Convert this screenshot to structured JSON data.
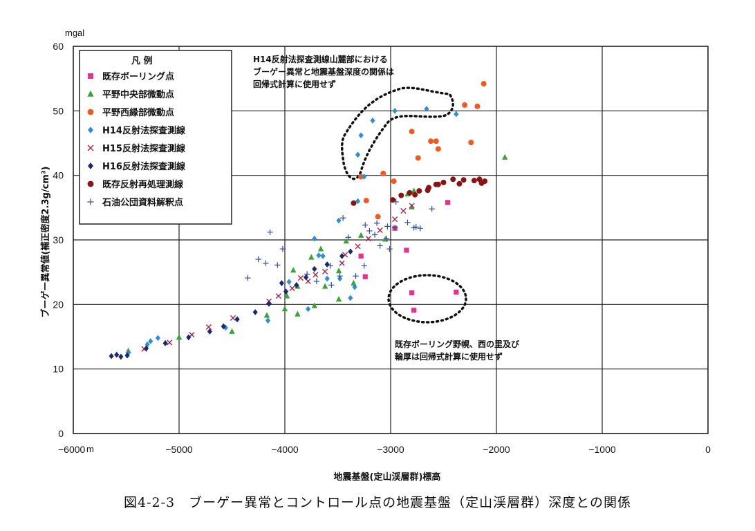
{
  "caption": "図4-2-3　ブーゲー異常とコントロール点の地震基盤（定山渓層群）深度との関係",
  "chart_data": {
    "type": "scatter",
    "xlabel": "地震基盤(定山渓層群)標高",
    "ylabel": "ブーゲー異常値(補正密度2.3g/cm³)",
    "x_unit": "m",
    "y_unit": "mgal",
    "xlim": [
      -6000,
      0
    ],
    "ylim": [
      0,
      60
    ],
    "x_ticks": [
      -6000,
      -5000,
      -4000,
      -3000,
      -2000,
      -1000,
      0
    ],
    "y_ticks": [
      0,
      10,
      20,
      30,
      40,
      50,
      60
    ],
    "x_tick_labels": [
      "−6000",
      "−5000",
      "−4000",
      "−3000",
      "−2000",
      "−1000",
      "0"
    ],
    "y_tick_labels": [
      "0",
      "10",
      "20",
      "30",
      "40",
      "50",
      "60"
    ],
    "grid": true,
    "legend_title": "凡 例",
    "legend_position": "top-left",
    "series": [
      {
        "name": "既存ボーリング点",
        "marker": "square",
        "color": "#e8308c",
        "points": [
          [
            -2800,
            21.8
          ],
          [
            -2780,
            19.1
          ],
          [
            -2380,
            21.9
          ],
          [
            -2850,
            28.4
          ],
          [
            -2960,
            31.8
          ],
          [
            -3240,
            24.3
          ],
          [
            -3280,
            27.5
          ],
          [
            -2460,
            35.8
          ]
        ]
      },
      {
        "name": "平野中央部微動点",
        "marker": "triangle",
        "color": "#3aa43a",
        "points": [
          [
            -5480,
            12.8
          ],
          [
            -5000,
            14.9
          ],
          [
            -4500,
            15.8
          ],
          [
            -4170,
            18.3
          ],
          [
            -4000,
            19.3
          ],
          [
            -3880,
            18.5
          ],
          [
            -3720,
            19.8
          ],
          [
            -3490,
            20.8
          ],
          [
            -3660,
            28.6
          ],
          [
            -3750,
            27.3
          ],
          [
            -3420,
            29.8
          ],
          [
            -3280,
            30.7
          ],
          [
            -3350,
            23.3
          ],
          [
            -3490,
            25.2
          ],
          [
            -3880,
            22.8
          ],
          [
            -3980,
            21.3
          ],
          [
            -3920,
            25.3
          ],
          [
            -3620,
            22.8
          ],
          [
            -2780,
            37.6
          ],
          [
            -2840,
            37.1
          ],
          [
            -1920,
            42.8
          ],
          [
            -3050,
            30.1
          ],
          [
            -2800,
            35.1
          ]
        ]
      },
      {
        "name": "平野西縁部微動点",
        "marker": "circle",
        "color": "#f05a1e",
        "points": [
          [
            -2120,
            54.2
          ],
          [
            -2180,
            50.7
          ],
          [
            -2300,
            50.9
          ],
          [
            -2240,
            45.1
          ],
          [
            -2620,
            45.3
          ],
          [
            -2570,
            45.3
          ],
          [
            -2550,
            44.1
          ],
          [
            -2800,
            46.8
          ],
          [
            -2740,
            42.7
          ],
          [
            -3070,
            40.3
          ],
          [
            -3280,
            39.8
          ],
          [
            -2970,
            39.1
          ],
          [
            -3120,
            33.6
          ],
          [
            -3230,
            36.1
          ]
        ]
      },
      {
        "name": "H14反射法探査測線",
        "marker": "diamond",
        "color": "#2f8fd6",
        "points": [
          [
            -5480,
            12.5
          ],
          [
            -5300,
            13.8
          ],
          [
            -5270,
            14.3
          ],
          [
            -5200,
            14.8
          ],
          [
            -4560,
            16.4
          ],
          [
            -4160,
            17.5
          ],
          [
            -3480,
            24.0
          ],
          [
            -3380,
            21.0
          ],
          [
            -3340,
            22.7
          ],
          [
            -3310,
            36.0
          ],
          [
            -3310,
            43.2
          ],
          [
            -3280,
            46.2
          ],
          [
            -3250,
            39.8
          ],
          [
            -3170,
            48.5
          ],
          [
            -2960,
            50.0
          ],
          [
            -2660,
            50.3
          ],
          [
            -2380,
            49.5
          ],
          [
            -3490,
            33.0
          ],
          [
            -3720,
            30.2
          ],
          [
            -3640,
            27.5
          ],
          [
            -3600,
            24.0
          ],
          [
            -3780,
            19.3
          ],
          [
            -3960,
            23.5
          ],
          [
            -3680,
            27.6
          ]
        ]
      },
      {
        "name": "H15反射法探査測線",
        "marker": "x",
        "color": "#b0204a",
        "points": [
          [
            -5330,
            13.1
          ],
          [
            -5090,
            14.1
          ],
          [
            -4880,
            15.3
          ],
          [
            -4720,
            16.5
          ],
          [
            -4490,
            17.9
          ],
          [
            -4150,
            20.5
          ],
          [
            -4060,
            21.3
          ],
          [
            -3930,
            22.5
          ],
          [
            -3780,
            23.6
          ],
          [
            -3710,
            24.6
          ],
          [
            -3620,
            25.1
          ],
          [
            -3430,
            27.7
          ],
          [
            -3310,
            29.0
          ],
          [
            -3210,
            30.2
          ],
          [
            -3100,
            31.5
          ],
          [
            -2960,
            33.2
          ],
          [
            -2880,
            34.5
          ],
          [
            -2800,
            35.3
          ],
          [
            -3850,
            24.1
          ],
          [
            -3460,
            26.4
          ]
        ]
      },
      {
        "name": "H16反射法探査測線",
        "marker": "diamond",
        "color": "#1a2a6e",
        "points": [
          [
            -5640,
            12.0
          ],
          [
            -5590,
            12.2
          ],
          [
            -5550,
            11.9
          ],
          [
            -5490,
            12.1
          ],
          [
            -5310,
            13.2
          ],
          [
            -5130,
            14.0
          ],
          [
            -4910,
            14.9
          ],
          [
            -4710,
            15.8
          ],
          [
            -4580,
            16.6
          ],
          [
            -4450,
            17.7
          ],
          [
            -4280,
            18.8
          ],
          [
            -4150,
            20.1
          ],
          [
            -3990,
            22.0
          ],
          [
            -3890,
            23.0
          ],
          [
            -3800,
            24.2
          ],
          [
            -3720,
            25.5
          ],
          [
            -3600,
            26.2
          ],
          [
            -3460,
            27.5
          ],
          [
            -3380,
            28.2
          ],
          [
            -4030,
            23.3
          ]
        ]
      },
      {
        "name": "既存反射再処理測線",
        "marker": "circle",
        "color": "#8a1414",
        "points": [
          [
            -3350,
            35.7
          ],
          [
            -2980,
            36.2
          ],
          [
            -2900,
            36.9
          ],
          [
            -2820,
            37.3
          ],
          [
            -2730,
            37.6
          ],
          [
            -2640,
            38.1
          ],
          [
            -2570,
            38.6
          ],
          [
            -2500,
            38.9
          ],
          [
            -2410,
            39.4
          ],
          [
            -2310,
            39.3
          ],
          [
            -2210,
            39.2
          ],
          [
            -2140,
            38.8
          ],
          [
            -2160,
            39.4
          ],
          [
            -2110,
            39.1
          ],
          [
            -2650,
            37.7
          ],
          [
            -2550,
            38.6
          ],
          [
            -2350,
            38.7
          ],
          [
            -2770,
            37.0
          ]
        ]
      },
      {
        "name": "石油公団資料解釈点",
        "marker": "plus",
        "color": "#2d49a8",
        "points": [
          [
            -4350,
            24.1
          ],
          [
            -4250,
            27.0
          ],
          [
            -4180,
            26.4
          ],
          [
            -4070,
            26.1
          ],
          [
            -4020,
            28.6
          ],
          [
            -4140,
            31.2
          ],
          [
            -3790,
            24.7
          ],
          [
            -3700,
            23.6
          ],
          [
            -3570,
            26.0
          ],
          [
            -3450,
            33.4
          ],
          [
            -3240,
            32.3
          ],
          [
            -3200,
            31.4
          ],
          [
            -3150,
            30.8
          ],
          [
            -3030,
            32.1
          ],
          [
            -2960,
            31.9
          ],
          [
            -2760,
            32.0
          ],
          [
            -2840,
            32.7
          ],
          [
            -2610,
            34.8
          ],
          [
            -2720,
            31.8
          ],
          [
            -2950,
            35.9
          ],
          [
            -3040,
            30.2
          ],
          [
            -3100,
            29.1
          ],
          [
            -3010,
            28.6
          ],
          [
            -3250,
            26.0
          ],
          [
            -3330,
            24.4
          ],
          [
            -3480,
            24.4
          ],
          [
            -3560,
            23.0
          ],
          [
            -3130,
            32.6
          ],
          [
            -3400,
            30.4
          ],
          [
            -2780,
            31.9
          ]
        ]
      }
    ],
    "annotations": [
      {
        "text_lines": [
          "H14反射法探査測線山麓部における",
          "ブーゲー異常と地震基盤深度の関係は",
          "回帰式計算に使用せず"
        ],
        "position": "top-center"
      },
      {
        "text_lines": [
          "既存ボーリング野幌、西の里及び",
          "輪厚は回帰式計算に使用せず"
        ],
        "position": "lower-right"
      }
    ]
  }
}
